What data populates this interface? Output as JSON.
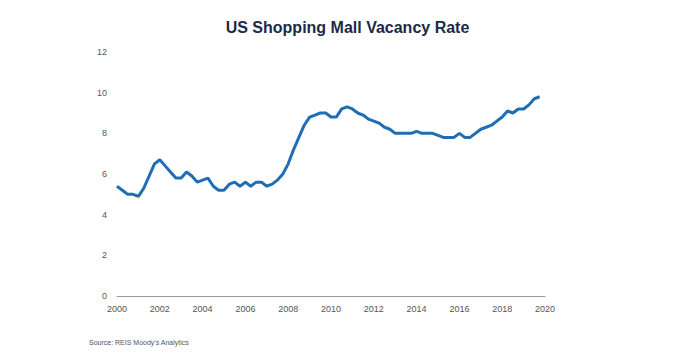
{
  "chart_data": {
    "type": "line",
    "title": "US Shopping Mall Vacancy Rate",
    "source": "Source: REIS Moody's Analytics",
    "color": "#1f6db5",
    "grid": false,
    "x": [
      2000,
      2000.25,
      2000.5,
      2000.75,
      2001,
      2001.25,
      2001.5,
      2001.75,
      2002,
      2002.25,
      2002.5,
      2002.75,
      2003,
      2003.25,
      2003.5,
      2003.75,
      2004,
      2004.25,
      2004.5,
      2004.75,
      2005,
      2005.25,
      2005.5,
      2005.75,
      2006,
      2006.25,
      2006.5,
      2006.75,
      2007,
      2007.25,
      2007.5,
      2007.75,
      2008,
      2008.25,
      2008.5,
      2008.75,
      2009,
      2009.25,
      2009.5,
      2009.75,
      2010,
      2010.25,
      2010.5,
      2010.75,
      2011,
      2011.25,
      2011.5,
      2011.75,
      2012,
      2012.25,
      2012.5,
      2012.75,
      2013,
      2013.25,
      2013.5,
      2013.75,
      2014,
      2014.25,
      2014.5,
      2014.75,
      2015,
      2015.25,
      2015.5,
      2015.75,
      2016,
      2016.25,
      2016.5,
      2016.75,
      2017,
      2017.25,
      2017.5,
      2017.75,
      2018,
      2018.25,
      2018.5,
      2018.75,
      2019,
      2019.25,
      2019.5,
      2019.75
    ],
    "values": [
      5.4,
      5.2,
      5.0,
      5.0,
      4.9,
      5.3,
      5.9,
      6.5,
      6.7,
      6.4,
      6.1,
      5.8,
      5.8,
      6.1,
      5.9,
      5.6,
      5.7,
      5.8,
      5.4,
      5.2,
      5.2,
      5.5,
      5.6,
      5.4,
      5.6,
      5.4,
      5.6,
      5.6,
      5.4,
      5.5,
      5.7,
      6.0,
      6.5,
      7.2,
      7.8,
      8.4,
      8.8,
      8.9,
      9.0,
      9.0,
      8.8,
      8.8,
      9.2,
      9.3,
      9.2,
      9.0,
      8.9,
      8.7,
      8.6,
      8.5,
      8.3,
      8.2,
      8.0,
      8.0,
      8.0,
      8.0,
      8.1,
      8.0,
      8.0,
      8.0,
      7.9,
      7.8,
      7.8,
      7.8,
      8.0,
      7.8,
      7.8,
      8.0,
      8.2,
      8.3,
      8.4,
      8.6,
      8.8,
      9.1,
      9.0,
      9.2,
      9.2,
      9.4,
      9.7,
      9.8
    ],
    "xlim": [
      2000,
      2020
    ],
    "xticks": [
      2000,
      2002,
      2004,
      2006,
      2008,
      2010,
      2012,
      2014,
      2016,
      2018,
      2020
    ],
    "ylim": [
      0,
      12
    ],
    "yticks": [
      0,
      2,
      4,
      6,
      8,
      10,
      12
    ]
  }
}
